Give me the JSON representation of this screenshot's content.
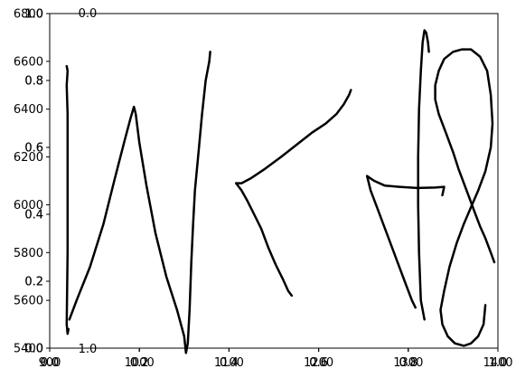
{
  "chart_data": {
    "type": "line",
    "title": "",
    "xlabel": "",
    "ylabel": "",
    "grid": false,
    "legend": "none",
    "line_color": "#000000",
    "axes_overlay": [
      {
        "name": "primary-axes",
        "xlim": [
          900,
          1400
        ],
        "ylim": [
          5400,
          6800
        ],
        "x_ticks": [
          {
            "value": 900,
            "label": "900"
          },
          {
            "value": 1000,
            "label": "1000"
          },
          {
            "value": 1100,
            "label": "1100"
          },
          {
            "value": 1200,
            "label": "1200"
          },
          {
            "value": 1300,
            "label": "1300"
          },
          {
            "value": 1400,
            "label": "1400"
          }
        ],
        "y_ticks": [
          {
            "value": 5400,
            "label": "5400"
          },
          {
            "value": 5600,
            "label": "5600"
          },
          {
            "value": 5800,
            "label": "5800"
          },
          {
            "value": 6000,
            "label": "6000"
          },
          {
            "value": 6200,
            "label": "6200"
          },
          {
            "value": 6400,
            "label": "6400"
          },
          {
            "value": 6600,
            "label": "6600"
          },
          {
            "value": 6800,
            "label": "6800"
          }
        ]
      },
      {
        "name": "unit-axes-1",
        "x_ticks": [
          {
            "value": 0.0,
            "label": "0.0"
          },
          {
            "value": 0.2,
            "label": "0.2"
          },
          {
            "value": 0.4,
            "label": "0.4"
          },
          {
            "value": 0.6,
            "label": "0.6"
          },
          {
            "value": 0.8,
            "label": "0.8"
          },
          {
            "value": 1.0,
            "label": "1.0"
          }
        ],
        "y_ticks": [
          {
            "value": 0.0,
            "label": "0.0"
          },
          {
            "value": 0.2,
            "label": "0.2"
          },
          {
            "value": 0.4,
            "label": "0.4"
          },
          {
            "value": 0.6,
            "label": "0.6"
          },
          {
            "value": 0.8,
            "label": "0.8"
          },
          {
            "value": 1.0,
            "label": "1.0"
          }
        ]
      },
      {
        "name": "unit-axes-2",
        "x_ticks": [
          {
            "value": 0.0,
            "label": "0.0"
          },
          {
            "value": 0.2,
            "label": "0.2"
          },
          {
            "value": 0.4,
            "label": "0.4"
          },
          {
            "value": 0.6,
            "label": "0.6"
          },
          {
            "value": 0.8,
            "label": "0.8"
          },
          {
            "value": 1.0,
            "label": "1.0"
          }
        ],
        "y_ticks": [
          {
            "value": 0.0,
            "label": "0.0"
          },
          {
            "value": 0.2,
            "label": "0.2"
          },
          {
            "value": 0.4,
            "label": "0.4"
          },
          {
            "value": 0.6,
            "label": "0.6"
          },
          {
            "value": 0.8,
            "label": "0.8"
          },
          {
            "value": 1.0,
            "label": "1.0"
          }
        ]
      }
    ],
    "stray_labels": [
      {
        "text": "0.0"
      },
      {
        "text": "1.0"
      }
    ],
    "series": [
      {
        "points": [
          [
            919,
            6580
          ],
          [
            920,
            6560
          ],
          [
            919,
            6500
          ],
          [
            920,
            6380
          ],
          [
            920,
            5800
          ],
          [
            919,
            5500
          ],
          [
            920,
            5460
          ],
          [
            921,
            5480
          ]
        ]
      },
      {
        "points": [
          [
            922,
            5520
          ],
          [
            930,
            5600
          ],
          [
            945,
            5740
          ],
          [
            960,
            5920
          ],
          [
            972,
            6100
          ],
          [
            983,
            6260
          ],
          [
            990,
            6360
          ],
          [
            994,
            6410
          ],
          [
            996,
            6380
          ],
          [
            1000,
            6260
          ],
          [
            1008,
            6080
          ],
          [
            1018,
            5880
          ],
          [
            1030,
            5700
          ],
          [
            1042,
            5560
          ],
          [
            1050,
            5450
          ],
          [
            1052,
            5380
          ],
          [
            1054,
            5420
          ],
          [
            1056,
            5560
          ],
          [
            1058,
            5760
          ],
          [
            1060,
            5920
          ],
          [
            1062,
            6060
          ],
          [
            1066,
            6220
          ],
          [
            1070,
            6380
          ],
          [
            1074,
            6520
          ],
          [
            1078,
            6600
          ],
          [
            1079,
            6640
          ]
        ]
      },
      {
        "points": [
          [
            1108,
            6090
          ],
          [
            1114,
            6090
          ],
          [
            1124,
            6110
          ],
          [
            1140,
            6150
          ],
          [
            1158,
            6200
          ],
          [
            1175,
            6250
          ],
          [
            1192,
            6300
          ],
          [
            1208,
            6340
          ],
          [
            1220,
            6380
          ],
          [
            1228,
            6420
          ],
          [
            1234,
            6460
          ],
          [
            1236,
            6480
          ]
        ]
      },
      {
        "points": [
          [
            1108,
            6090
          ],
          [
            1114,
            6060
          ],
          [
            1120,
            6020
          ],
          [
            1128,
            5960
          ],
          [
            1136,
            5900
          ],
          [
            1144,
            5820
          ],
          [
            1152,
            5750
          ],
          [
            1160,
            5690
          ],
          [
            1166,
            5640
          ],
          [
            1170,
            5620
          ]
        ]
      },
      {
        "points": [
          [
            1254,
            6120
          ],
          [
            1262,
            6100
          ],
          [
            1274,
            6080
          ],
          [
            1290,
            6075
          ],
          [
            1310,
            6070
          ],
          [
            1330,
            6072
          ],
          [
            1340,
            6075
          ],
          [
            1338,
            6040
          ]
        ]
      },
      {
        "points": [
          [
            1254,
            6120
          ],
          [
            1258,
            6060
          ],
          [
            1266,
            5980
          ],
          [
            1276,
            5880
          ],
          [
            1286,
            5780
          ],
          [
            1296,
            5680
          ],
          [
            1304,
            5600
          ],
          [
            1308,
            5570
          ]
        ]
      },
      {
        "points": [
          [
            1318,
            5520
          ],
          [
            1314,
            5600
          ],
          [
            1312,
            5800
          ],
          [
            1311,
            6000
          ],
          [
            1311,
            6200
          ],
          [
            1312,
            6400
          ],
          [
            1314,
            6560
          ],
          [
            1316,
            6680
          ],
          [
            1318,
            6730
          ],
          [
            1320,
            6720
          ],
          [
            1322,
            6680
          ],
          [
            1323,
            6640
          ]
        ]
      },
      {
        "points": [
          [
            1386,
            5580
          ],
          [
            1384,
            5500
          ],
          [
            1378,
            5450
          ],
          [
            1370,
            5420
          ],
          [
            1362,
            5410
          ],
          [
            1352,
            5420
          ],
          [
            1344,
            5450
          ],
          [
            1338,
            5500
          ],
          [
            1336,
            5560
          ],
          [
            1340,
            5640
          ],
          [
            1346,
            5740
          ],
          [
            1354,
            5840
          ],
          [
            1362,
            5920
          ],
          [
            1370,
            5990
          ],
          [
            1378,
            6060
          ],
          [
            1386,
            6140
          ],
          [
            1392,
            6240
          ],
          [
            1394,
            6340
          ],
          [
            1392,
            6460
          ],
          [
            1388,
            6560
          ],
          [
            1380,
            6620
          ],
          [
            1370,
            6650
          ],
          [
            1360,
            6650
          ],
          [
            1350,
            6640
          ],
          [
            1340,
            6610
          ],
          [
            1334,
            6560
          ],
          [
            1330,
            6500
          ],
          [
            1330,
            6440
          ],
          [
            1334,
            6380
          ],
          [
            1342,
            6300
          ],
          [
            1350,
            6220
          ],
          [
            1356,
            6150
          ],
          [
            1362,
            6090
          ],
          [
            1368,
            6030
          ],
          [
            1374,
            5970
          ],
          [
            1380,
            5910
          ],
          [
            1386,
            5860
          ],
          [
            1392,
            5800
          ],
          [
            1396,
            5760
          ]
        ]
      }
    ]
  }
}
